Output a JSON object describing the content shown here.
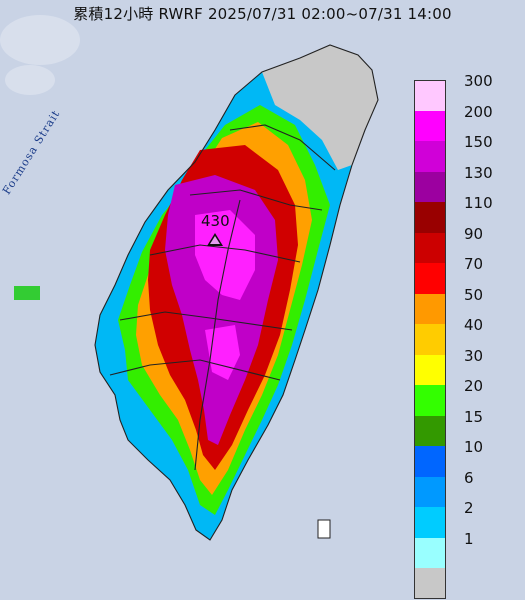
{
  "title": "累積12小時 RWRF 2025/07/31 02:00~07/31 14:00",
  "sea_label": "Formosa Strait",
  "max_value": "430",
  "legend": [
    {
      "label": "300",
      "color": "#ffc8ff"
    },
    {
      "label": "200",
      "color": "#ff00ff"
    },
    {
      "label": "150",
      "color": "#d000d8"
    },
    {
      "label": "130",
      "color": "#9c00a0"
    },
    {
      "label": "110",
      "color": "#990000"
    },
    {
      "label": "90",
      "color": "#cc0000"
    },
    {
      "label": "70",
      "color": "#ff0000"
    },
    {
      "label": "50",
      "color": "#ff9900"
    },
    {
      "label": "40",
      "color": "#ffcc00"
    },
    {
      "label": "30",
      "color": "#ffff00"
    },
    {
      "label": "20",
      "color": "#33ff00"
    },
    {
      "label": "15",
      "color": "#339900"
    },
    {
      "label": "10",
      "color": "#0066ff"
    },
    {
      "label": "6",
      "color": "#0099ff"
    },
    {
      "label": "2",
      "color": "#00ccff"
    },
    {
      "label": "1",
      "color": "#99ffff"
    },
    {
      "label": "",
      "color": "#c8c8c8"
    }
  ],
  "colors": {
    "sea": "#c9d3e5",
    "land_gray": "#c8c8c8",
    "border": "#222222"
  }
}
